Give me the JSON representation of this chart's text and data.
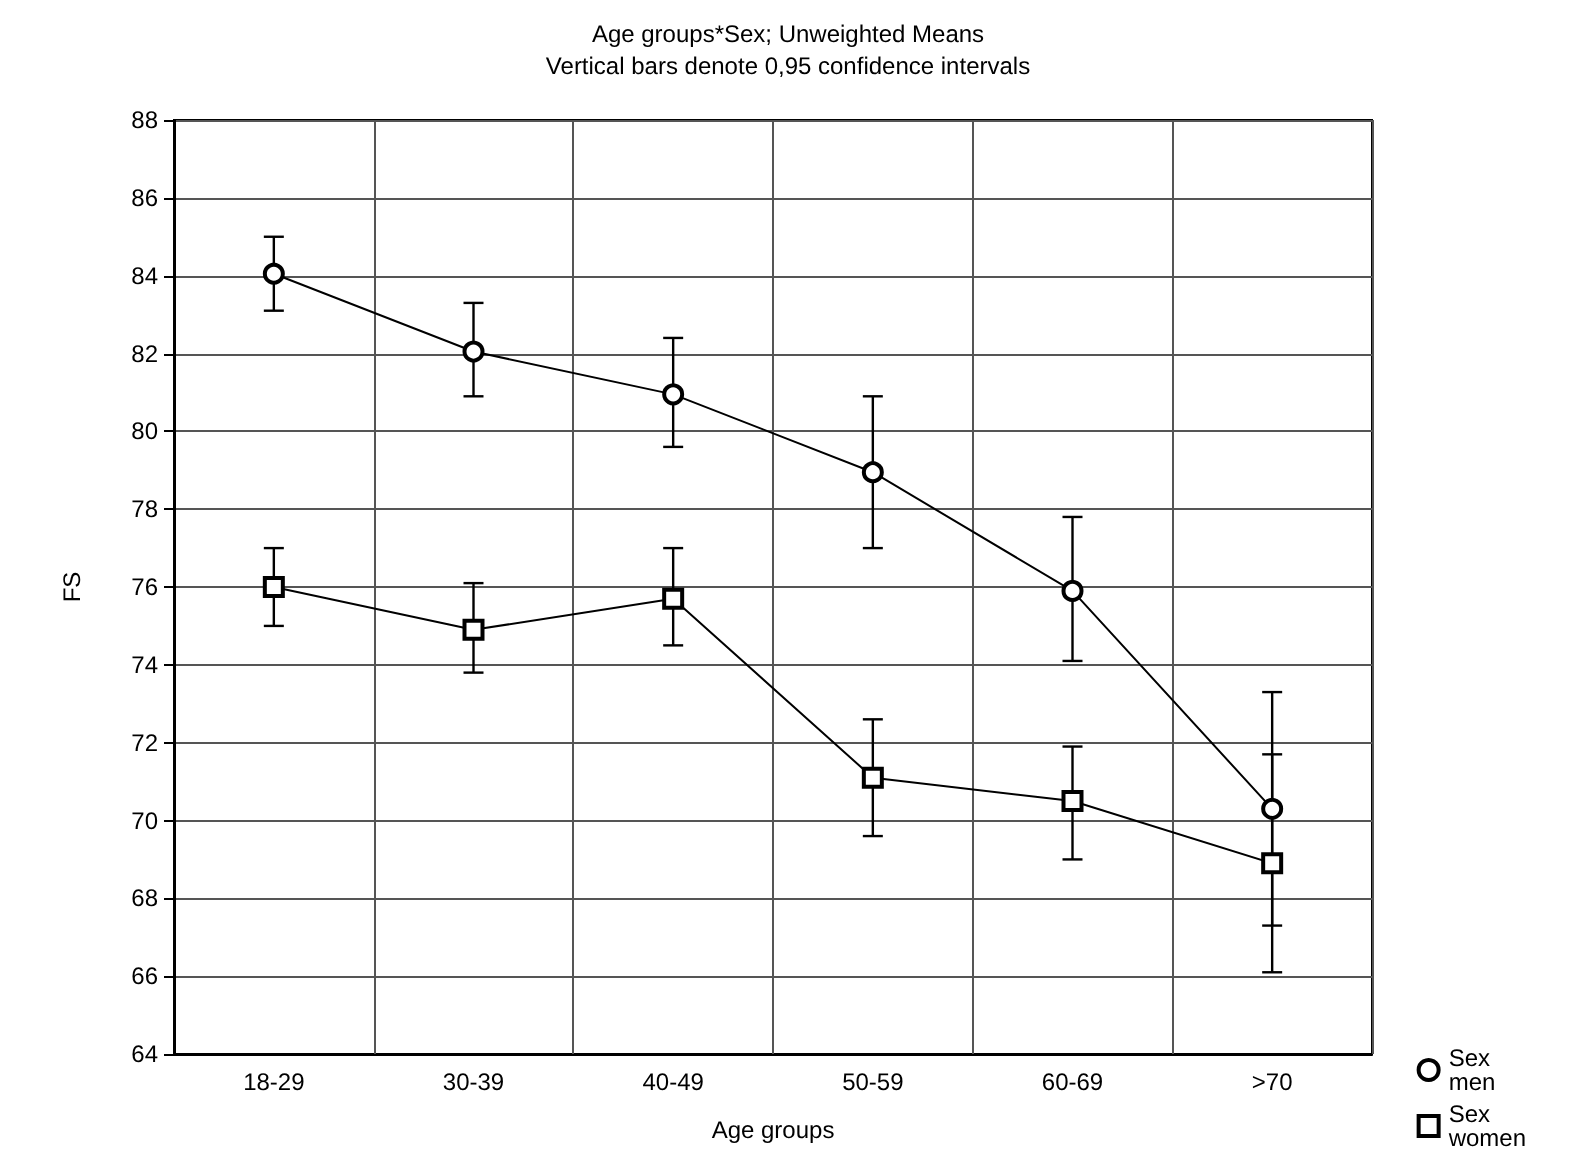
{
  "chart_data": {
    "type": "line",
    "title": "Age groups*Sex; Unweighted Means",
    "subtitle": "Vertical bars denote 0,95 confidence intervals",
    "xlabel": "Age groups",
    "ylabel": "FS",
    "categories": [
      "18-29",
      "30-39",
      "40-49",
      "50-59",
      "60-69",
      ">70"
    ],
    "series": [
      {
        "name": "Sex men",
        "color": "#000000",
        "marker": "circle",
        "values": [
          84.05,
          82.05,
          80.95,
          78.95,
          75.9,
          70.3
        ],
        "errors": [
          [
            83.1,
            85.0
          ],
          [
            80.9,
            83.3
          ],
          [
            79.6,
            82.4
          ],
          [
            77.0,
            80.9
          ],
          [
            74.1,
            77.8
          ],
          [
            67.3,
            73.3
          ]
        ]
      },
      {
        "name": "Sex women",
        "color": "#000000",
        "marker": "square",
        "values": [
          76.0,
          74.9,
          75.7,
          71.1,
          70.5,
          68.9
        ],
        "errors": [
          [
            75.0,
            77.0
          ],
          [
            73.8,
            76.1
          ],
          [
            74.5,
            77.0
          ],
          [
            69.6,
            72.6
          ],
          [
            69.0,
            71.9
          ],
          [
            66.1,
            71.7
          ]
        ]
      }
    ],
    "ylim": [
      64,
      88
    ],
    "yticks": [
      64,
      66,
      68,
      70,
      72,
      74,
      76,
      78,
      80,
      82,
      84,
      86,
      88
    ],
    "grid": true,
    "legend": "bottom right",
    "line_style": "solid"
  }
}
